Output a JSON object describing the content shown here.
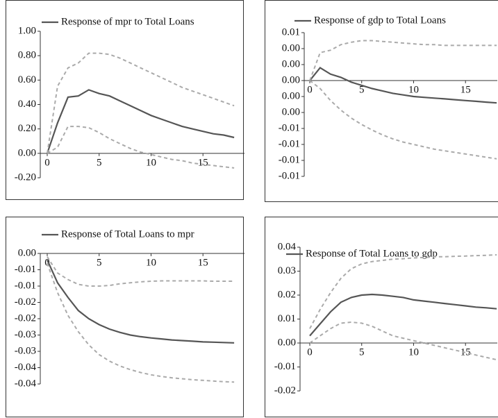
{
  "chart_data": [
    {
      "type": "line",
      "legend": "top",
      "x": [
        0,
        1,
        2,
        3,
        4,
        5,
        6,
        7,
        8,
        9,
        10,
        11,
        12,
        13,
        14,
        15,
        16,
        17,
        18
      ],
      "xlim": [
        0,
        19
      ],
      "xticks": [
        0,
        5,
        10,
        15
      ],
      "ylim": [
        -0.2,
        1.0
      ],
      "yticks": [
        {
          "value": -0.2,
          "label": "-0.20"
        },
        {
          "value": 0,
          "label": "0.00"
        },
        {
          "value": 0.2,
          "label": "0.20"
        },
        {
          "value": 0.4,
          "label": "0.40"
        },
        {
          "value": 0.6,
          "label": "0.60"
        },
        {
          "value": 0.8,
          "label": "0.80"
        },
        {
          "value": 1.0,
          "label": "1.00"
        }
      ],
      "series": [
        {
          "name": "Response of mpr to Total Loans",
          "color": "#555555",
          "dashed": false,
          "values": [
            0,
            0.25,
            0.46,
            0.47,
            0.52,
            0.49,
            0.47,
            0.43,
            0.39,
            0.35,
            0.31,
            0.28,
            0.25,
            0.22,
            0.2,
            0.18,
            0.16,
            0.15,
            0.13
          ]
        },
        {
          "color": "#aaaaaa",
          "dashed": true,
          "values": [
            0,
            0.55,
            0.7,
            0.74,
            0.82,
            0.82,
            0.81,
            0.78,
            0.74,
            0.7,
            0.66,
            0.62,
            0.58,
            0.54,
            0.51,
            0.48,
            0.45,
            0.42,
            0.39
          ]
        },
        {
          "color": "#aaaaaa",
          "dashed": true,
          "values": [
            0,
            0.05,
            0.22,
            0.22,
            0.21,
            0.17,
            0.12,
            0.08,
            0.04,
            0.01,
            -0.01,
            -0.03,
            -0.05,
            -0.06,
            -0.08,
            -0.09,
            -0.1,
            -0.11,
            -0.12
          ]
        }
      ]
    },
    {
      "type": "line",
      "legend": "top",
      "x": [
        0,
        1,
        2,
        3,
        4,
        5,
        6,
        7,
        8,
        9,
        10,
        11,
        12,
        13,
        14,
        15,
        16,
        17,
        18
      ],
      "xlim": [
        0,
        19
      ],
      "xticks": [
        0,
        5,
        10,
        15
      ],
      "ylim": [
        -0.012,
        0.006
      ],
      "yticks": [
        {
          "value": -0.012,
          "label": "-0.01"
        },
        {
          "value": -0.01,
          "label": "-0.01"
        },
        {
          "value": -0.008,
          "label": "-0.01"
        },
        {
          "value": -0.006,
          "label": "-0.01"
        },
        {
          "value": -0.004,
          "label": "0.00"
        },
        {
          "value": -0.002,
          "label": "0.00"
        },
        {
          "value": 0,
          "label": "0.00"
        },
        {
          "value": 0.002,
          "label": "0.00"
        },
        {
          "value": 0.004,
          "label": "0.00"
        },
        {
          "value": 0.006,
          "label": "0.01"
        }
      ],
      "series": [
        {
          "name": "Response of gdp to Total Loans",
          "color": "#555555",
          "dashed": false,
          "values": [
            0,
            0.0016,
            0.0008,
            0.0004,
            -0.0002,
            -0.0006,
            -0.001,
            -0.0013,
            -0.0016,
            -0.0018,
            -0.002,
            -0.0021,
            -0.0022,
            -0.0023,
            -0.0024,
            -0.0025,
            -0.0026,
            -0.0027,
            -0.0028
          ]
        },
        {
          "color": "#aaaaaa",
          "dashed": true,
          "values": [
            0,
            0.0035,
            0.0038,
            0.0045,
            0.0048,
            0.005,
            0.005,
            0.0049,
            0.0048,
            0.0047,
            0.0046,
            0.0045,
            0.0045,
            0.0044,
            0.0044,
            0.0044,
            0.0044,
            0.0044,
            0.0044
          ]
        },
        {
          "color": "#aaaaaa",
          "dashed": true,
          "values": [
            0,
            -0.001,
            -0.0025,
            -0.0037,
            -0.0047,
            -0.0055,
            -0.0062,
            -0.0068,
            -0.0073,
            -0.0077,
            -0.008,
            -0.0083,
            -0.0086,
            -0.0088,
            -0.009,
            -0.0092,
            -0.0094,
            -0.0096,
            -0.0098
          ]
        }
      ]
    },
    {
      "type": "line",
      "legend": "top",
      "x": [
        0,
        1,
        2,
        3,
        4,
        5,
        6,
        7,
        8,
        9,
        10,
        11,
        12,
        13,
        14,
        15,
        16,
        17,
        18
      ],
      "xlim": [
        0,
        19
      ],
      "xticks": [
        0,
        5,
        10,
        15
      ],
      "ylim": [
        -0.04,
        0
      ],
      "yticks": [
        {
          "value": -0.04,
          "label": "-0.04"
        },
        {
          "value": -0.035,
          "label": "-0.04"
        },
        {
          "value": -0.03,
          "label": "-0.03"
        },
        {
          "value": -0.025,
          "label": "-0.03"
        },
        {
          "value": -0.02,
          "label": "-0.02"
        },
        {
          "value": -0.015,
          "label": "-0.02"
        },
        {
          "value": -0.01,
          "label": "-0.01"
        },
        {
          "value": -0.005,
          "label": "-0.01"
        },
        {
          "value": 0,
          "label": "0.00"
        }
      ],
      "series": [
        {
          "name": "Response of Total Loans to mpr",
          "color": "#555555",
          "dashed": false,
          "values": [
            -0.002,
            -0.009,
            -0.0135,
            -0.0175,
            -0.02,
            -0.0218,
            -0.0232,
            -0.0242,
            -0.025,
            -0.0255,
            -0.0259,
            -0.0262,
            -0.0265,
            -0.0267,
            -0.0269,
            -0.0271,
            -0.0272,
            -0.0273,
            -0.0274
          ]
        },
        {
          "color": "#aaaaaa",
          "dashed": true,
          "values": [
            -0.001,
            -0.006,
            -0.008,
            -0.0095,
            -0.01,
            -0.01,
            -0.0098,
            -0.0093,
            -0.009,
            -0.0087,
            -0.0085,
            -0.0084,
            -0.0084,
            -0.0084,
            -0.0084,
            -0.0084,
            -0.0085,
            -0.0085,
            -0.0085
          ]
        },
        {
          "color": "#aaaaaa",
          "dashed": true,
          "values": [
            -0.003,
            -0.012,
            -0.019,
            -0.024,
            -0.028,
            -0.031,
            -0.033,
            -0.0345,
            -0.0356,
            -0.0365,
            -0.0372,
            -0.0377,
            -0.0381,
            -0.0384,
            -0.0387,
            -0.0389,
            -0.0391,
            -0.0393,
            -0.0394
          ]
        }
      ]
    },
    {
      "type": "line",
      "legend": "top",
      "x": [
        0,
        1,
        2,
        3,
        4,
        5,
        6,
        7,
        8,
        9,
        10,
        11,
        12,
        13,
        14,
        15,
        16,
        17,
        18
      ],
      "xlim": [
        0,
        19
      ],
      "xticks": [
        0,
        5,
        10,
        15
      ],
      "ylim": [
        -0.02,
        0.04
      ],
      "yticks": [
        {
          "value": -0.02,
          "label": "-0.02"
        },
        {
          "value": -0.01,
          "label": "-0.01"
        },
        {
          "value": 0,
          "label": "0.00"
        },
        0.01,
        0.02,
        0.03,
        0.04
      ],
      "series": [
        {
          "name": "Response of Total Loans to gdp",
          "color": "#555555",
          "dashed": false,
          "values": [
            0.003,
            0.008,
            0.013,
            0.017,
            0.019,
            0.02,
            0.0203,
            0.02,
            0.0195,
            0.019,
            0.018,
            0.0175,
            0.017,
            0.0165,
            0.016,
            0.0155,
            0.015,
            0.0147,
            0.0143
          ]
        },
        {
          "color": "#aaaaaa",
          "dashed": true,
          "values": [
            0.006,
            0.014,
            0.021,
            0.027,
            0.031,
            0.033,
            0.034,
            0.0345,
            0.035,
            0.0352,
            0.0355,
            0.0357,
            0.036,
            0.036,
            0.0362,
            0.0363,
            0.0365,
            0.0366,
            0.0368
          ]
        },
        {
          "color": "#aaaaaa",
          "dashed": true,
          "values": [
            0,
            0.003,
            0.006,
            0.0083,
            0.0087,
            0.0083,
            0.007,
            0.005,
            0.003,
            0.002,
            0.001,
            0,
            -0.001,
            -0.002,
            -0.003,
            -0.004,
            -0.005,
            -0.006,
            -0.007
          ]
        }
      ]
    }
  ]
}
